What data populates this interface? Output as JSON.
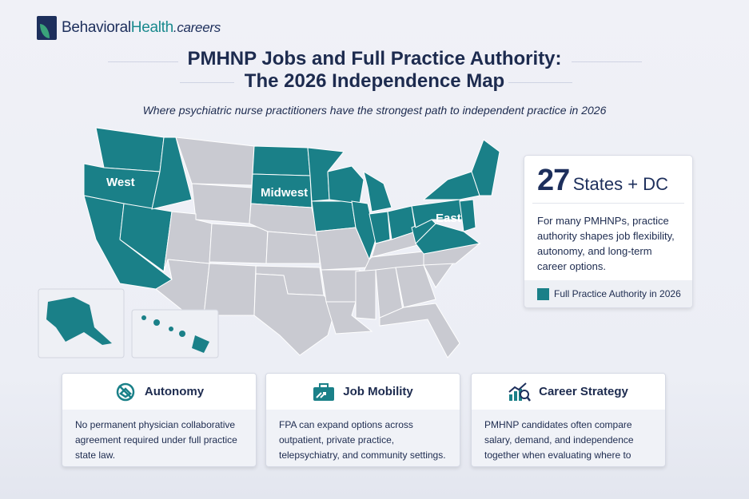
{
  "brand": {
    "name_part1": "Behavioral",
    "name_part2": "Health",
    "name_part3": ".careers"
  },
  "header": {
    "title_line1": "PMHNP Jobs and Full Practice Authority:",
    "title_line2": "The 2026 Independence Map",
    "subtitle": "Where psychiatric nurse practitioners have the strongest path to independent practice in 2026"
  },
  "map": {
    "regions": {
      "west": "West",
      "midwest": "Midwest",
      "east": "East"
    },
    "colors": {
      "fpa": "#1a8088",
      "other": "#c9cad1"
    }
  },
  "stat_card": {
    "number": "27",
    "unit": "States + DC",
    "description": "For many PMHNPs, practice authority shapes job flexibility, autonomy, and long-term career options.",
    "legend": "Full Practice Authority in 2026"
  },
  "cards": [
    {
      "title": "Autonomy",
      "icon": "handshake-crossed-icon",
      "text": "No permanent physician collaborative agreement required under full practice state law."
    },
    {
      "title": "Job Mobility",
      "icon": "briefcase-arrows-icon",
      "text": "FPA can expand options across outpatient, private practice, telepsychiatry, and community settings."
    },
    {
      "title": "Career Strategy",
      "icon": "chart-magnifier-icon",
      "text": "PMHNP candidates often compare salary, demand, and independence together when evaluating where to work."
    }
  ]
}
